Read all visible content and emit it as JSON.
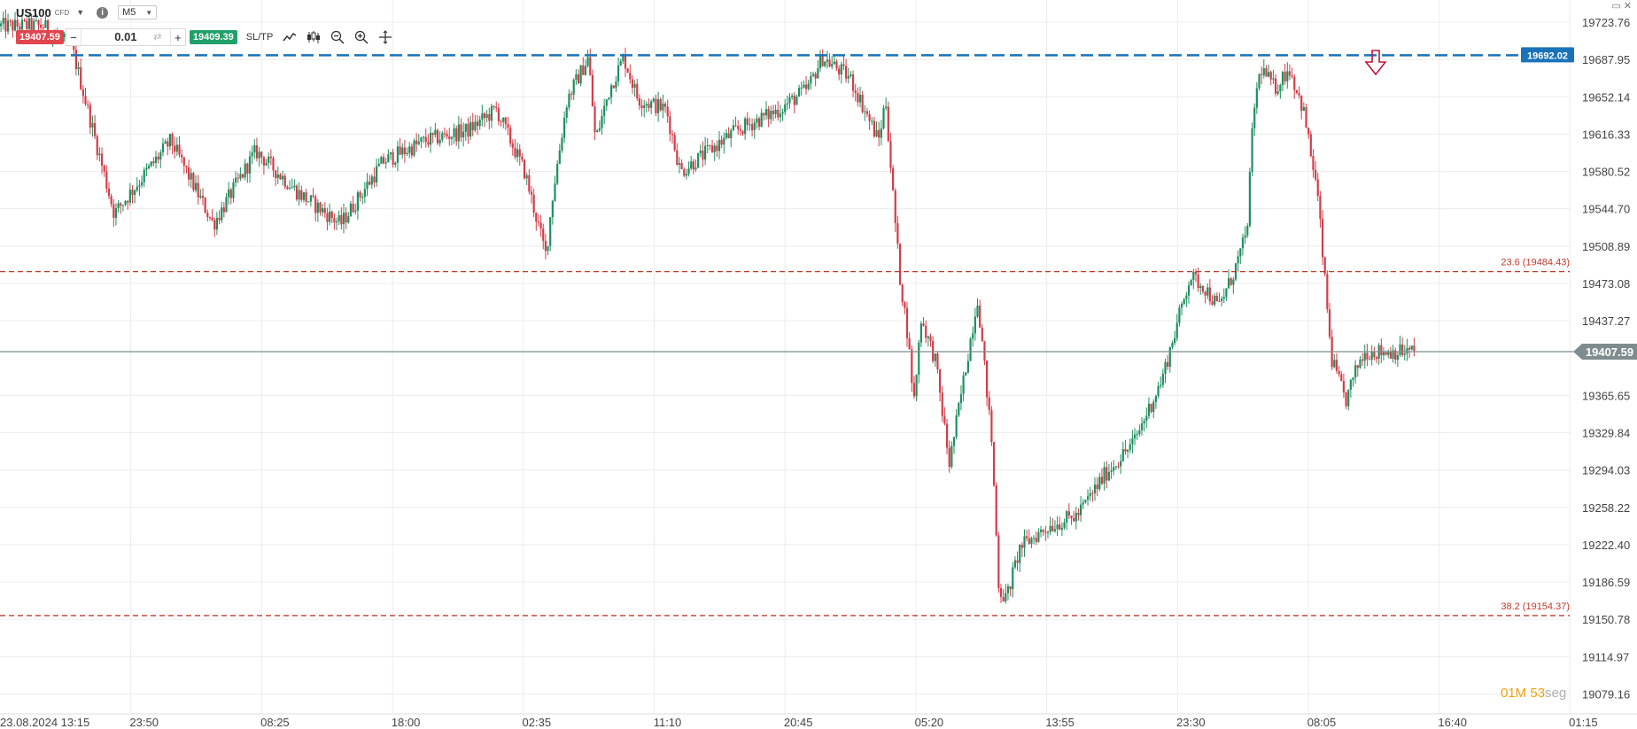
{
  "instrument": {
    "symbol": "US100",
    "type_badge": "CFD",
    "timeframe": "M5",
    "info_glyph": "i"
  },
  "trade_panel": {
    "sell_price": "19407.59",
    "buy_price": "19409.39",
    "quantity": "0.01",
    "minus_label": "−",
    "plus_label": "+",
    "sltp_label": "SL/TP"
  },
  "toolbar_icons": [
    "line-chart-icon",
    "candlestick-icon",
    "zoom-out-icon",
    "zoom-in-icon",
    "crosshair-icon"
  ],
  "window_controls": {
    "minimize": "▭",
    "close": "✕"
  },
  "price_axis": {
    "labels": [
      "19723.76",
      "19687.95",
      "19652.14",
      "19616.33",
      "19580.52",
      "19544.70",
      "19508.89",
      "19473.08",
      "19437.27",
      "19365.65",
      "19329.84",
      "19294.03",
      "19258.22",
      "19222.40",
      "19186.59",
      "19150.78",
      "19114.97",
      "19079.16"
    ]
  },
  "time_axis": {
    "labels": [
      "23.08.2024 13:15",
      "23:50",
      "08:25",
      "18:00",
      "02:35",
      "11:10",
      "20:45",
      "05:20",
      "13:55",
      "23:30",
      "08:05",
      "16:40",
      "01:15"
    ]
  },
  "levels": {
    "resistance": {
      "price": 19692.02,
      "label": "19692.02",
      "color": "#1a73b9"
    },
    "fib_23": {
      "price": 19484.43,
      "label": "23.6 (19484.43)",
      "color": "#c0392b"
    },
    "fib_38": {
      "price": 19154.37,
      "label": "38.2 (19154.37)",
      "color": "#c0392b"
    },
    "current": {
      "price": 19407.59,
      "label": "19407.59",
      "color": "#7f8c8d"
    }
  },
  "colors": {
    "bull": "#1f8f5f",
    "bear": "#d43c48",
    "grid": "#ececec",
    "marker": "#c0163a"
  },
  "countdown": {
    "value": "01M 53",
    "unit": "seg"
  },
  "chart_data": {
    "type": "candlestick",
    "price_range": [
      19060,
      19745
    ],
    "path_waypoints": [
      [
        0,
        19720
      ],
      [
        0.03,
        19720
      ],
      [
        0.05,
        19700
      ],
      [
        0.08,
        19540
      ],
      [
        0.12,
        19610
      ],
      [
        0.15,
        19530
      ],
      [
        0.18,
        19600
      ],
      [
        0.21,
        19560
      ],
      [
        0.24,
        19530
      ],
      [
        0.27,
        19590
      ],
      [
        0.3,
        19610
      ],
      [
        0.33,
        19620
      ],
      [
        0.35,
        19640
      ],
      [
        0.37,
        19580
      ],
      [
        0.385,
        19500
      ],
      [
        0.39,
        19560
      ],
      [
        0.4,
        19650
      ],
      [
        0.415,
        19690
      ],
      [
        0.42,
        19610
      ],
      [
        0.43,
        19660
      ],
      [
        0.44,
        19690
      ],
      [
        0.45,
        19650
      ],
      [
        0.47,
        19640
      ],
      [
        0.48,
        19580
      ],
      [
        0.5,
        19600
      ],
      [
        0.52,
        19620
      ],
      [
        0.55,
        19640
      ],
      [
        0.57,
        19660
      ],
      [
        0.58,
        19690
      ],
      [
        0.6,
        19670
      ],
      [
        0.62,
        19610
      ],
      [
        0.625,
        19650
      ],
      [
        0.63,
        19560
      ],
      [
        0.635,
        19480
      ],
      [
        0.64,
        19430
      ],
      [
        0.645,
        19360
      ],
      [
        0.65,
        19440
      ],
      [
        0.66,
        19400
      ],
      [
        0.67,
        19300
      ],
      [
        0.68,
        19380
      ],
      [
        0.69,
        19460
      ],
      [
        0.7,
        19320
      ],
      [
        0.705,
        19180
      ],
      [
        0.71,
        19170
      ],
      [
        0.72,
        19220
      ],
      [
        0.74,
        19240
      ],
      [
        0.76,
        19250
      ],
      [
        0.78,
        19290
      ],
      [
        0.8,
        19320
      ],
      [
        0.81,
        19350
      ],
      [
        0.82,
        19380
      ],
      [
        0.83,
        19430
      ],
      [
        0.84,
        19480
      ],
      [
        0.85,
        19470
      ],
      [
        0.86,
        19450
      ],
      [
        0.87,
        19480
      ],
      [
        0.88,
        19520
      ],
      [
        0.885,
        19640
      ],
      [
        0.89,
        19680
      ],
      [
        0.9,
        19660
      ],
      [
        0.91,
        19680
      ],
      [
        0.92,
        19640
      ],
      [
        0.93,
        19560
      ],
      [
        0.935,
        19480
      ],
      [
        0.94,
        19400
      ],
      [
        0.95,
        19360
      ],
      [
        0.96,
        19400
      ],
      [
        0.965,
        19407.59
      ]
    ]
  }
}
